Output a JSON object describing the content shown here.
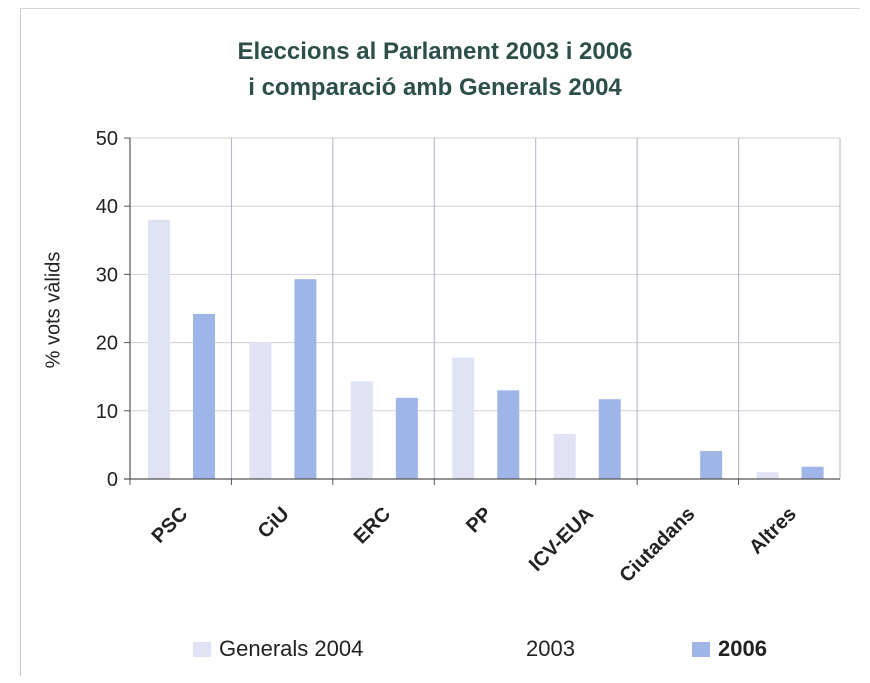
{
  "chart_data": {
    "type": "bar",
    "title_line1": "Eleccions al Parlament 2003 i 2006",
    "title_line2": "i comparació amb Generals 2004",
    "ylabel": "% vots vàlids",
    "ylim": [
      0,
      50
    ],
    "yticks": [
      "0",
      "10",
      "20",
      "30",
      "40",
      "50"
    ],
    "grid": true,
    "legend_position": "bottom",
    "categories": [
      "PSC",
      "CiU",
      "ERC",
      "PP",
      "ICV-EUA",
      "Ciutadans",
      "Altres"
    ],
    "series": [
      {
        "name": "Generals 2004",
        "color": "#dfe3f4",
        "values": [
          38,
          20,
          14.3,
          17.8,
          6.6,
          null,
          1.0
        ]
      },
      {
        "name": "2003",
        "color": "#ffffff",
        "values": [
          null,
          null,
          null,
          null,
          null,
          null,
          null
        ]
      },
      {
        "name": "2006",
        "color": "#9fb5e8",
        "values": [
          24.2,
          29.3,
          11.9,
          13,
          11.7,
          4.1,
          1.8
        ]
      }
    ]
  }
}
